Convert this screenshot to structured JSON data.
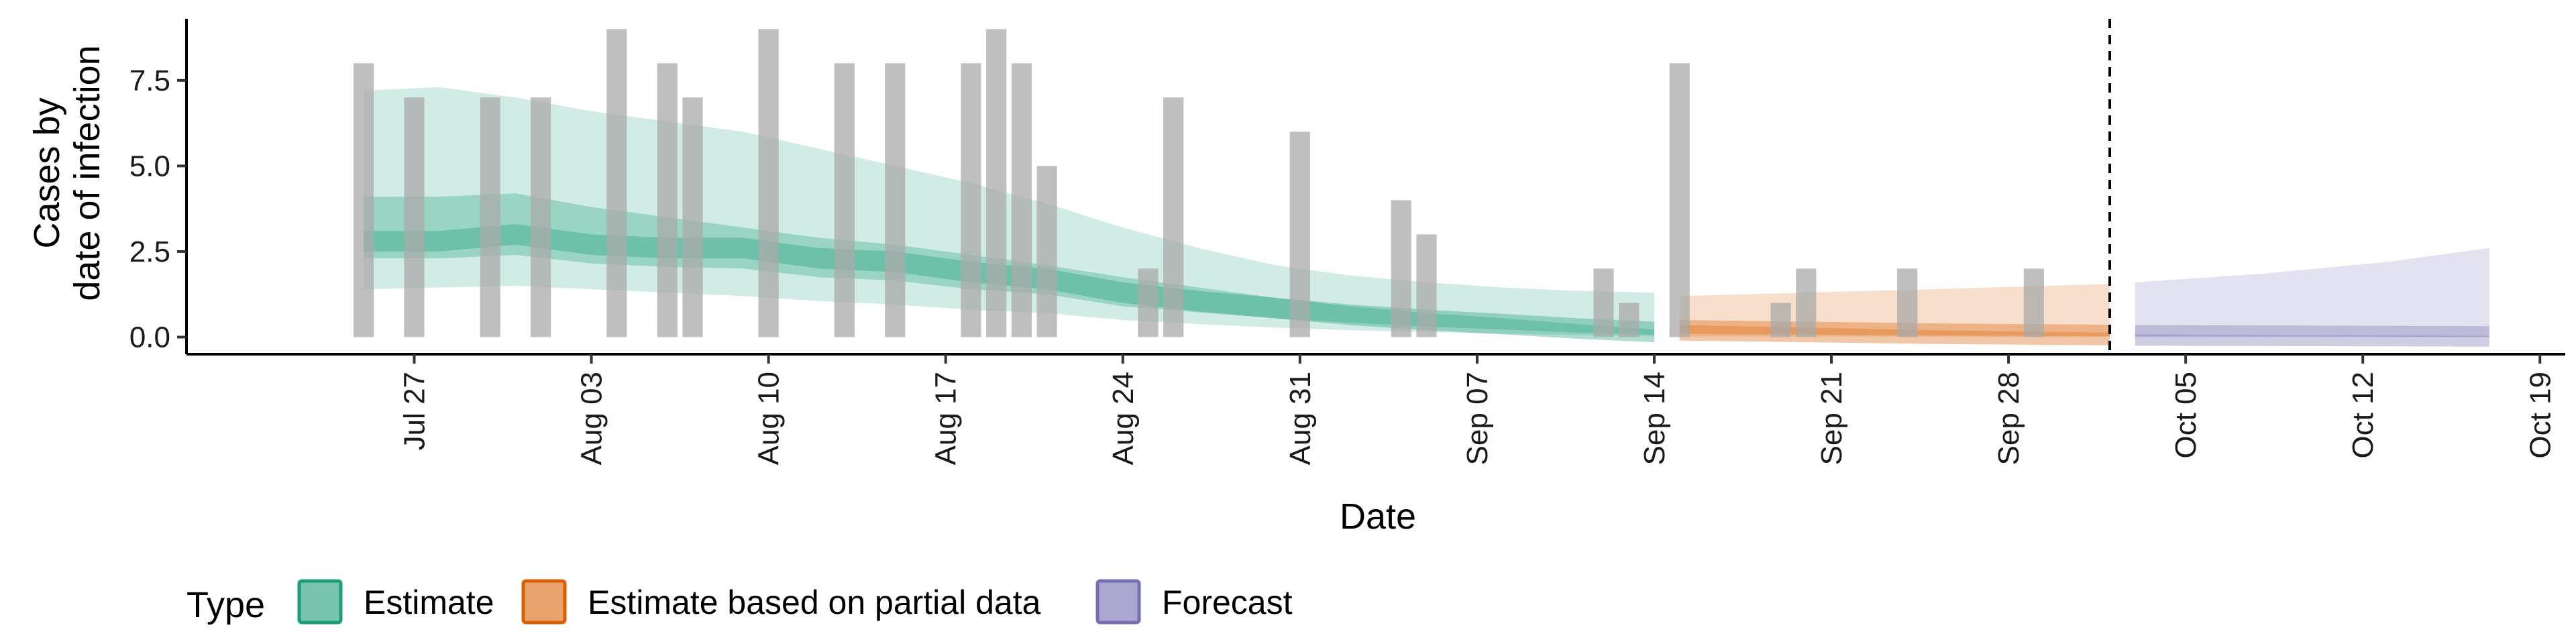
{
  "chart_data": {
    "type": "area",
    "xlabel": "Date",
    "ylabel_lines": [
      "Cases by",
      "date of infection"
    ],
    "x_range": [
      "2020-07-18",
      "2020-10-20"
    ],
    "y_range": [
      -0.5,
      9.3
    ],
    "y_ticks": [
      0.0,
      2.5,
      5.0,
      7.5
    ],
    "y_tick_labels": [
      "0.0",
      "2.5",
      "5.0",
      "7.5"
    ],
    "x_ticks": [
      "2020-07-27",
      "2020-08-03",
      "2020-08-10",
      "2020-08-17",
      "2020-08-24",
      "2020-08-31",
      "2020-09-07",
      "2020-09-14",
      "2020-09-21",
      "2020-09-28",
      "2020-10-05",
      "2020-10-12",
      "2020-10-19"
    ],
    "x_tick_labels": [
      "Jul 27",
      "Aug 03",
      "Aug 10",
      "Aug 17",
      "Aug 24",
      "Aug 31",
      "Sep 07",
      "Sep 14",
      "Sep 21",
      "Sep 28",
      "Oct 05",
      "Oct 12",
      "Oct 19"
    ],
    "forecast_date": "2020-10-02",
    "observed_cases": [
      {
        "date": "2020-07-25",
        "value": 8
      },
      {
        "date": "2020-07-27",
        "value": 7
      },
      {
        "date": "2020-07-30",
        "value": 7
      },
      {
        "date": "2020-08-01",
        "value": 7
      },
      {
        "date": "2020-08-04",
        "value": 9
      },
      {
        "date": "2020-08-06",
        "value": 8
      },
      {
        "date": "2020-08-07",
        "value": 7
      },
      {
        "date": "2020-08-10",
        "value": 9
      },
      {
        "date": "2020-08-13",
        "value": 8
      },
      {
        "date": "2020-08-15",
        "value": 8
      },
      {
        "date": "2020-08-18",
        "value": 8
      },
      {
        "date": "2020-08-19",
        "value": 9
      },
      {
        "date": "2020-08-20",
        "value": 8
      },
      {
        "date": "2020-08-21",
        "value": 5
      },
      {
        "date": "2020-08-25",
        "value": 2
      },
      {
        "date": "2020-08-26",
        "value": 7
      },
      {
        "date": "2020-08-31",
        "value": 6
      },
      {
        "date": "2020-09-04",
        "value": 4
      },
      {
        "date": "2020-09-05",
        "value": 3
      },
      {
        "date": "2020-09-12",
        "value": 2
      },
      {
        "date": "2020-09-13",
        "value": 1
      },
      {
        "date": "2020-09-15",
        "value": 8
      },
      {
        "date": "2020-09-19",
        "value": 1
      },
      {
        "date": "2020-09-20",
        "value": 2
      },
      {
        "date": "2020-09-24",
        "value": 2
      },
      {
        "date": "2020-09-29",
        "value": 2
      }
    ],
    "series": [
      {
        "name": "Estimate",
        "color": "#1b9e77",
        "dates": [
          "2020-07-25",
          "2020-07-28",
          "2020-07-31",
          "2020-08-03",
          "2020-08-06",
          "2020-08-09",
          "2020-08-12",
          "2020-08-15",
          "2020-08-18",
          "2020-08-21",
          "2020-08-24",
          "2020-08-27",
          "2020-08-30",
          "2020-09-02",
          "2020-09-05",
          "2020-09-08",
          "2020-09-11",
          "2020-09-14"
        ],
        "median": [
          2.8,
          2.8,
          3.0,
          2.7,
          2.6,
          2.6,
          2.3,
          2.2,
          1.9,
          1.7,
          1.3,
          1.05,
          0.85,
          0.65,
          0.5,
          0.38,
          0.25,
          0.15
        ],
        "lower_50": [
          2.3,
          2.3,
          2.4,
          2.15,
          2.05,
          2.0,
          1.75,
          1.65,
          1.4,
          1.25,
          0.9,
          0.72,
          0.55,
          0.42,
          0.31,
          0.22,
          0.13,
          0.07
        ],
        "upper_50": [
          4.1,
          4.1,
          4.2,
          3.8,
          3.5,
          3.2,
          2.9,
          2.7,
          2.4,
          2.1,
          1.75,
          1.45,
          1.15,
          0.9,
          0.7,
          0.55,
          0.38,
          0.22
        ],
        "lower_90": [
          1.4,
          1.45,
          1.5,
          1.4,
          1.3,
          1.2,
          1.05,
          0.95,
          0.8,
          0.7,
          0.5,
          0.38,
          0.28,
          0.2,
          0.15,
          0.1,
          0.06,
          0.03
        ],
        "upper_90": [
          7.2,
          7.3,
          7.0,
          6.6,
          6.3,
          6.0,
          5.5,
          5.0,
          4.5,
          3.9,
          3.2,
          2.6,
          2.1,
          1.8,
          1.6,
          1.45,
          1.35,
          1.3
        ]
      },
      {
        "name": "Estimate based on partial data",
        "color": "#d95f02",
        "dates": [
          "2020-09-15",
          "2020-09-20",
          "2020-09-25",
          "2020-10-02"
        ],
        "median": [
          0.2,
          0.15,
          0.1,
          0.06
        ],
        "lower_50": [
          0.1,
          0.07,
          0.05,
          0.03
        ],
        "upper_50": [
          0.35,
          0.28,
          0.2,
          0.13
        ],
        "lower_90": [
          0.02,
          0.02,
          0.01,
          0.0
        ],
        "upper_90": [
          1.2,
          1.3,
          1.4,
          1.55
        ]
      },
      {
        "name": "Forecast",
        "color": "#7570b3",
        "dates": [
          "2020-10-03",
          "2020-10-08",
          "2020-10-13",
          "2020-10-17"
        ],
        "median": [
          0.05,
          0.04,
          0.03,
          0.02
        ],
        "lower_50": [
          0.02,
          0.015,
          0.01,
          0.01
        ],
        "upper_50": [
          0.08,
          0.06,
          0.05,
          0.04
        ],
        "lower_90": [
          0.0,
          0.0,
          0.0,
          0.0
        ],
        "upper_90": [
          1.6,
          1.85,
          2.2,
          2.6
        ]
      }
    ],
    "legend": {
      "title": "Type",
      "position": "bottom",
      "entries": [
        "Estimate",
        "Estimate based on partial data",
        "Forecast"
      ]
    },
    "bar_color": "#a9a9a9",
    "forecast_line_color": "#000000"
  }
}
